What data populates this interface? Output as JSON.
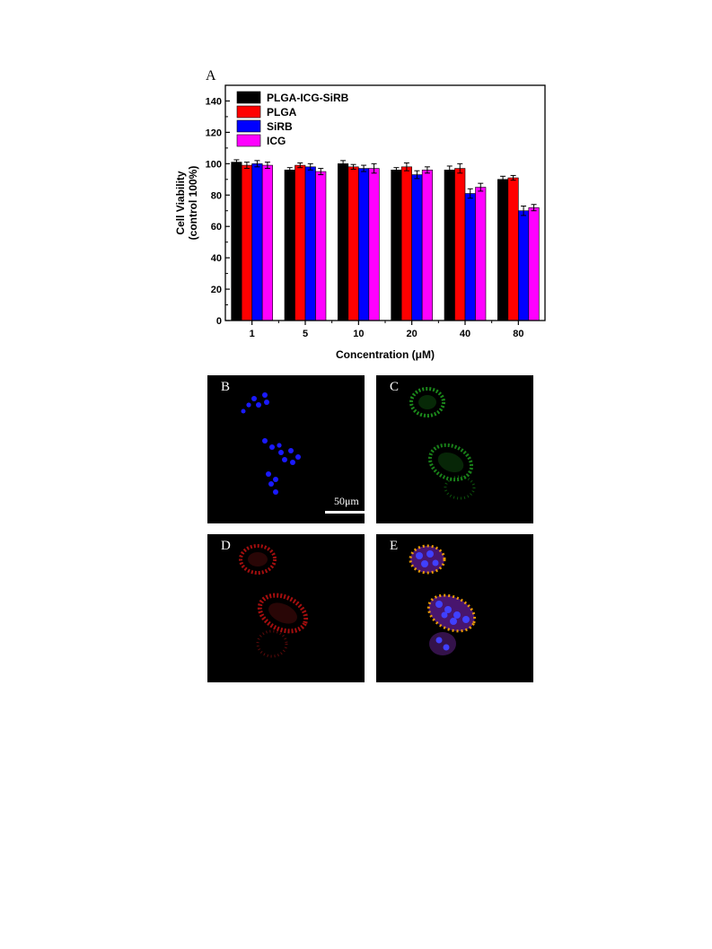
{
  "figure": {
    "panel_a_label": "A",
    "panels": [
      {
        "id": "B",
        "label": "B",
        "channel": "blue",
        "scale_bar": "50μm"
      },
      {
        "id": "C",
        "label": "C",
        "channel": "green"
      },
      {
        "id": "D",
        "label": "D",
        "channel": "red"
      },
      {
        "id": "E",
        "label": "E",
        "channel": "merge"
      }
    ]
  },
  "chart_data": {
    "type": "bar",
    "title": "",
    "xlabel": "Concentration (μM)",
    "ylabel": "Cell Viability\n(control 100%)",
    "ylim": [
      0,
      150
    ],
    "yticks": [
      0,
      20,
      40,
      60,
      80,
      100,
      120,
      140
    ],
    "categories": [
      "1",
      "5",
      "10",
      "20",
      "40",
      "80"
    ],
    "legend_position": "top-left",
    "grid": false,
    "error_bars": true,
    "series": [
      {
        "name": "PLGA-ICG-SiRB",
        "color": "#000000",
        "values": [
          101,
          96,
          100,
          96,
          96,
          90
        ],
        "errors": [
          1.5,
          1.5,
          2,
          1.5,
          2.5,
          2
        ]
      },
      {
        "name": "PLGA",
        "color": "#ff0000",
        "values": [
          99,
          99,
          98,
          98,
          97,
          91
        ],
        "errors": [
          2,
          1.5,
          1.5,
          2.5,
          3,
          1.5
        ]
      },
      {
        "name": "SiRB",
        "color": "#0000ff",
        "values": [
          100,
          98,
          97,
          93,
          81,
          70
        ],
        "errors": [
          2,
          2,
          2,
          2.5,
          3,
          3
        ]
      },
      {
        "name": "ICG",
        "color": "#ff00ff",
        "values": [
          99,
          95,
          97,
          96,
          85,
          72
        ],
        "errors": [
          2,
          2,
          3,
          2,
          2.5,
          2
        ]
      }
    ]
  }
}
